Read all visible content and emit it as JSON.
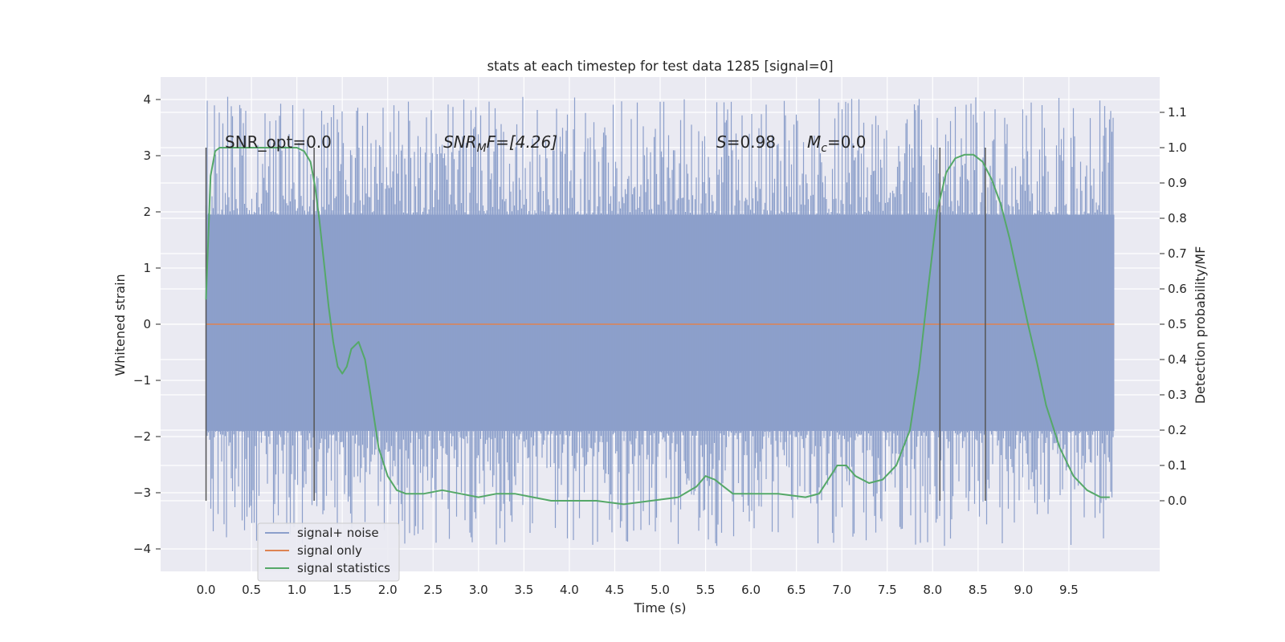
{
  "chart_data": {
    "type": "line",
    "title": "stats at each timestep for test data 1285 [signal=0]",
    "xlabel": "Time (s)",
    "ylabel": "Whitened strain",
    "y2label": "Detection probability/MF",
    "xlim": [
      -0.5,
      10.5
    ],
    "ylim": [
      -4.4,
      4.4
    ],
    "y2lim": [
      -0.2,
      1.2
    ],
    "x_ticks": [
      "0.0",
      "0.5",
      "1.0",
      "1.5",
      "2.0",
      "2.5",
      "3.0",
      "3.5",
      "4.0",
      "4.5",
      "5.0",
      "5.5",
      "6.0",
      "6.5",
      "7.0",
      "7.5",
      "8.0",
      "8.5",
      "9.0",
      "9.5"
    ],
    "y_ticks": [
      "4",
      "3",
      "2",
      "1",
      "0",
      "−1",
      "−2",
      "−3",
      "−4"
    ],
    "y2_ticks": [
      "1.1",
      "1.0",
      "0.9",
      "0.8",
      "0.7",
      "0.6",
      "0.5",
      "0.4",
      "0.3",
      "0.2",
      "0.1",
      "0.0"
    ],
    "grid": true,
    "legend_placement": "lower-left",
    "annotations": {
      "snr_opt": "SNR_opt=0.0",
      "snr_mf_name": "SNR",
      "snr_mf_sub": "M",
      "snr_mf_rest": "F=[4.26]",
      "s_name": "S",
      "s_value": "=0.98",
      "mc_name": "M",
      "mc_sub": "c",
      "mc_value": "=0.0"
    },
    "vertical_markers_x": [
      0.0,
      1.19,
      8.08,
      8.58
    ],
    "series": [
      {
        "name": "signal+ noise",
        "color": "#8c9fcb",
        "axis": "left",
        "x_range": [
          0.0,
          10.0
        ],
        "core_band": [
          -1.9,
          1.95
        ],
        "min": -3.95,
        "max": 4.05
      },
      {
        "name": "signal only",
        "color": "#dd8452",
        "axis": "left",
        "x": [
          0.0,
          10.0
        ],
        "y": [
          0.0,
          0.0
        ]
      },
      {
        "name": "signal statistics",
        "color": "#55a868",
        "axis": "right",
        "x": [
          0.0,
          0.05,
          0.1,
          0.15,
          0.2,
          0.3,
          0.5,
          0.7,
          0.9,
          1.0,
          1.08,
          1.15,
          1.2,
          1.25,
          1.3,
          1.35,
          1.4,
          1.45,
          1.5,
          1.55,
          1.6,
          1.68,
          1.75,
          1.8,
          1.9,
          2.0,
          2.1,
          2.2,
          2.4,
          2.6,
          2.8,
          3.0,
          3.2,
          3.4,
          3.6,
          3.8,
          4.0,
          4.3,
          4.6,
          4.9,
          5.2,
          5.4,
          5.5,
          5.6,
          5.7,
          5.8,
          6.0,
          6.3,
          6.6,
          6.75,
          6.85,
          6.95,
          7.05,
          7.15,
          7.3,
          7.45,
          7.6,
          7.75,
          7.85,
          7.95,
          8.05,
          8.15,
          8.25,
          8.35,
          8.45,
          8.55,
          8.65,
          8.75,
          8.85,
          8.95,
          9.05,
          9.15,
          9.25,
          9.4,
          9.55,
          9.7,
          9.85,
          9.95
        ],
        "y": [
          0.57,
          0.92,
          0.99,
          1.0,
          1.0,
          1.0,
          1.0,
          1.0,
          1.0,
          1.0,
          0.99,
          0.96,
          0.89,
          0.79,
          0.67,
          0.55,
          0.45,
          0.38,
          0.36,
          0.38,
          0.43,
          0.45,
          0.4,
          0.32,
          0.15,
          0.07,
          0.03,
          0.02,
          0.02,
          0.03,
          0.02,
          0.01,
          0.02,
          0.02,
          0.01,
          0.0,
          0.0,
          0.0,
          -0.01,
          0.0,
          0.01,
          0.04,
          0.07,
          0.06,
          0.04,
          0.02,
          0.02,
          0.02,
          0.01,
          0.02,
          0.06,
          0.1,
          0.1,
          0.07,
          0.05,
          0.06,
          0.1,
          0.2,
          0.37,
          0.6,
          0.82,
          0.93,
          0.97,
          0.98,
          0.98,
          0.96,
          0.91,
          0.84,
          0.74,
          0.62,
          0.5,
          0.39,
          0.27,
          0.15,
          0.07,
          0.03,
          0.01,
          0.01
        ]
      }
    ]
  }
}
